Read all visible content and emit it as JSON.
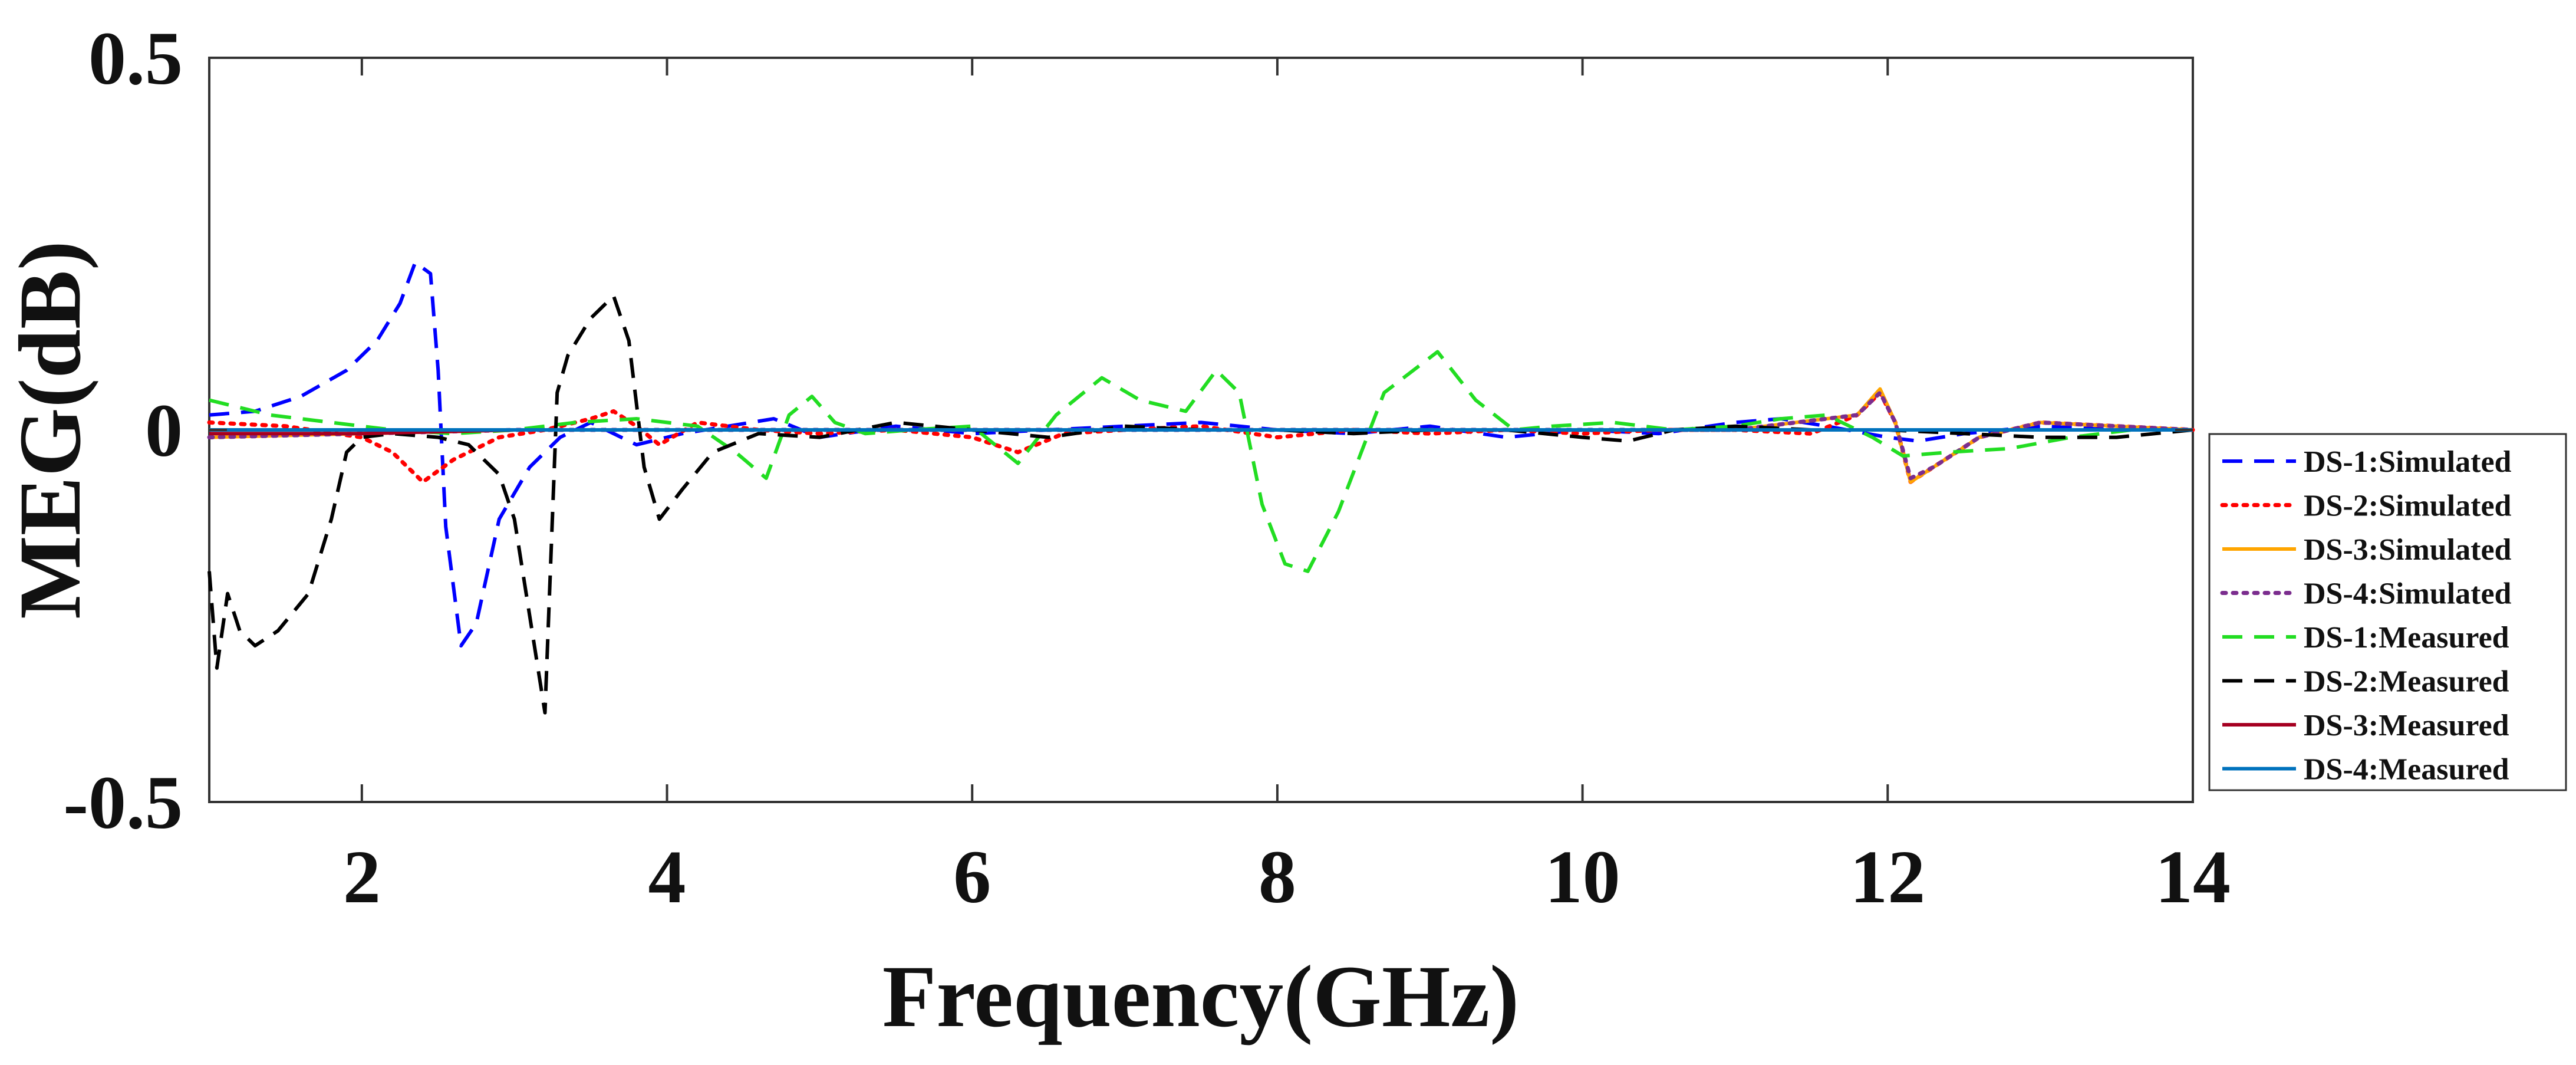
{
  "chart_data": {
    "type": "line",
    "title": "",
    "xlabel": "Frequency(GHz)",
    "ylabel": "MEG(dB)",
    "xlim": [
      1,
      14
    ],
    "ylim": [
      -0.5,
      0.5
    ],
    "x_ticks": [
      2,
      4,
      6,
      8,
      10,
      12,
      14
    ],
    "x_tick_labels": [
      "2",
      "4",
      "6",
      "8",
      "10",
      "12",
      "14"
    ],
    "y_ticks": [
      -0.5,
      0,
      0.5
    ],
    "y_tick_labels": [
      "-0.5",
      "0",
      "0.5"
    ],
    "grid": false,
    "legend_position": "right",
    "series": [
      {
        "name": "DS-1:Simulated",
        "color": "#0000ff",
        "style": "dashed",
        "x": [
          1.0,
          1.3,
          1.6,
          1.9,
          2.1,
          2.25,
          2.35,
          2.45,
          2.5,
          2.55,
          2.65,
          2.75,
          2.9,
          3.1,
          3.3,
          3.5,
          3.8,
          4.1,
          4.4,
          4.7,
          5.0,
          5.5,
          6.0,
          6.5,
          7.0,
          7.5,
          8.0,
          8.5,
          9.0,
          9.5,
          10.0,
          10.5,
          11.0,
          11.3,
          11.6,
          12.0,
          12.2,
          12.5,
          13.0,
          13.5,
          14.0
        ],
        "y": [
          0.02,
          0.025,
          0.045,
          0.08,
          0.12,
          0.17,
          0.225,
          0.21,
          0.08,
          -0.13,
          -0.29,
          -0.26,
          -0.12,
          -0.05,
          -0.01,
          0.01,
          -0.02,
          -0.005,
          0.005,
          0.015,
          -0.01,
          0.005,
          -0.005,
          0.0,
          0.005,
          0.01,
          0.0,
          -0.005,
          0.005,
          -0.01,
          0.0,
          -0.005,
          0.01,
          0.015,
          0.005,
          -0.01,
          -0.015,
          -0.005,
          0.005,
          0.0,
          0.0
        ]
      },
      {
        "name": "DS-2:Simulated",
        "color": "#ff0000",
        "style": "dotted",
        "x": [
          1.0,
          1.5,
          2.0,
          2.2,
          2.4,
          2.6,
          2.9,
          3.2,
          3.5,
          3.65,
          3.8,
          3.95,
          4.2,
          4.6,
          5.0,
          5.5,
          6.0,
          6.3,
          6.6,
          7.0,
          7.5,
          8.0,
          8.5,
          9.0,
          9.5,
          10.0,
          10.5,
          11.0,
          11.5,
          11.8,
          11.95,
          12.05,
          12.15,
          12.3,
          12.6,
          13.0,
          13.5,
          14.0
        ],
        "y": [
          0.01,
          0.005,
          -0.01,
          -0.03,
          -0.07,
          -0.04,
          -0.01,
          0.0,
          0.015,
          0.025,
          0.005,
          -0.02,
          0.01,
          0.0,
          -0.005,
          0.0,
          -0.01,
          -0.03,
          -0.005,
          0.0,
          0.005,
          -0.01,
          0.0,
          -0.005,
          0.0,
          -0.005,
          0.0,
          0.0,
          -0.005,
          0.02,
          0.05,
          0.01,
          -0.07,
          -0.05,
          -0.01,
          0.01,
          0.005,
          0.0
        ]
      },
      {
        "name": "DS-3:Simulated",
        "color": "#ffa500",
        "style": "solid",
        "x": [
          1.0,
          2.0,
          3.0,
          4.0,
          5.0,
          6.0,
          7.0,
          8.0,
          9.0,
          10.0,
          11.0,
          11.8,
          11.95,
          12.05,
          12.15,
          12.3,
          12.6,
          13.0,
          13.5,
          14.0
        ],
        "y": [
          -0.01,
          -0.005,
          0.0,
          0.0,
          0.0,
          0.0,
          0.0,
          0.0,
          0.0,
          0.0,
          0.0,
          0.02,
          0.055,
          0.01,
          -0.07,
          -0.05,
          -0.01,
          0.01,
          0.005,
          0.0
        ]
      },
      {
        "name": "DS-4:Simulated",
        "color": "#7b2d8e",
        "style": "dotted",
        "x": [
          1.0,
          2.0,
          3.0,
          4.0,
          5.0,
          6.0,
          7.0,
          8.0,
          9.0,
          10.0,
          11.0,
          11.8,
          11.95,
          12.05,
          12.15,
          12.3,
          12.6,
          13.0,
          13.5,
          14.0
        ],
        "y": [
          -0.01,
          -0.005,
          0.0,
          0.0,
          0.0,
          0.0,
          0.0,
          0.0,
          0.0,
          0.0,
          0.0,
          0.02,
          0.05,
          0.01,
          -0.065,
          -0.05,
          -0.01,
          0.01,
          0.005,
          0.0
        ]
      },
      {
        "name": "DS-1:Measured",
        "color": "#22dd22",
        "style": "dashed",
        "x": [
          1.0,
          1.4,
          1.8,
          2.2,
          2.6,
          3.0,
          3.4,
          3.8,
          4.2,
          4.45,
          4.65,
          4.8,
          4.95,
          5.1,
          5.3,
          5.6,
          6.0,
          6.3,
          6.55,
          6.85,
          7.1,
          7.4,
          7.6,
          7.75,
          7.9,
          8.05,
          8.2,
          8.4,
          8.7,
          9.05,
          9.3,
          9.55,
          9.8,
          10.2,
          10.6,
          11.0,
          11.3,
          11.6,
          11.9,
          12.1,
          12.4,
          12.8,
          13.2,
          13.6,
          14.0
        ],
        "y": [
          0.04,
          0.02,
          0.01,
          0.0,
          -0.005,
          0.0,
          0.01,
          0.015,
          0.005,
          -0.03,
          -0.065,
          0.02,
          0.045,
          0.01,
          -0.005,
          0.0,
          0.005,
          -0.045,
          0.02,
          0.07,
          0.04,
          0.025,
          0.08,
          0.05,
          -0.1,
          -0.18,
          -0.19,
          -0.11,
          0.05,
          0.105,
          0.04,
          0.0,
          0.005,
          0.01,
          0.0,
          0.005,
          0.015,
          0.02,
          -0.01,
          -0.035,
          -0.03,
          -0.025,
          -0.01,
          0.0,
          0.0
        ]
      },
      {
        "name": "DS-2:Measured",
        "color": "#000000",
        "style": "dashed",
        "x": [
          1.0,
          1.05,
          1.12,
          1.2,
          1.3,
          1.45,
          1.65,
          1.8,
          1.9,
          2.0,
          2.2,
          2.5,
          2.7,
          2.9,
          3.0,
          3.1,
          3.2,
          3.28,
          3.35,
          3.5,
          3.65,
          3.75,
          3.85,
          3.95,
          4.1,
          4.3,
          4.6,
          5.0,
          5.5,
          6.0,
          6.5,
          7.0,
          7.5,
          8.0,
          8.5,
          9.0,
          9.5,
          10.0,
          10.3,
          10.6,
          11.0,
          11.5,
          12.0,
          12.5,
          13.0,
          13.5,
          14.0
        ],
        "y": [
          -0.19,
          -0.32,
          -0.22,
          -0.27,
          -0.29,
          -0.27,
          -0.22,
          -0.12,
          -0.03,
          -0.01,
          -0.005,
          -0.01,
          -0.02,
          -0.06,
          -0.12,
          -0.25,
          -0.38,
          0.05,
          0.1,
          0.15,
          0.18,
          0.12,
          -0.05,
          -0.12,
          -0.08,
          -0.03,
          -0.005,
          -0.01,
          0.01,
          0.0,
          -0.01,
          0.005,
          0.0,
          0.0,
          -0.005,
          0.0,
          0.0,
          -0.01,
          -0.015,
          0.0,
          0.005,
          0.0,
          0.0,
          -0.005,
          -0.01,
          -0.01,
          0.0
        ]
      },
      {
        "name": "DS-3:Measured",
        "color": "#a50021",
        "style": "solid",
        "x": [
          1.0,
          2.0,
          3.0,
          4.0,
          5.0,
          6.0,
          7.0,
          8.0,
          9.0,
          10.0,
          11.0,
          12.0,
          13.0,
          14.0
        ],
        "y": [
          -0.005,
          -0.005,
          0.0,
          0.0,
          0.0,
          0.0,
          0.0,
          0.0,
          0.0,
          0.0,
          0.0,
          0.0,
          0.0,
          0.0
        ]
      },
      {
        "name": "DS-4:Measured",
        "color": "#0072bd",
        "style": "solid",
        "x": [
          1.0,
          2.0,
          3.0,
          4.0,
          5.0,
          6.0,
          7.0,
          8.0,
          9.0,
          10.0,
          11.0,
          12.0,
          13.0,
          14.0
        ],
        "y": [
          0.0,
          0.0,
          0.0,
          0.0,
          0.0,
          0.0,
          0.0,
          0.0,
          0.0,
          0.0,
          0.0,
          0.0,
          0.0,
          0.0
        ]
      }
    ]
  }
}
